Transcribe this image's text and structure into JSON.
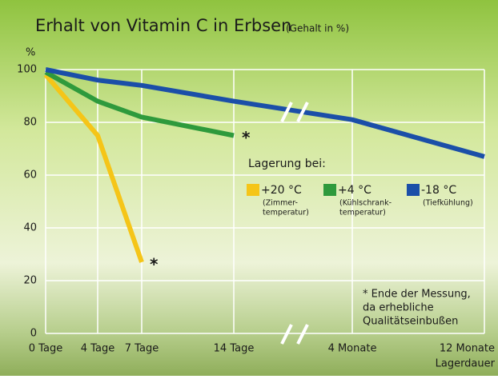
{
  "chart_data": {
    "type": "line",
    "title": "Erhalt von Vitamin C in Erbsen",
    "subtitle": "(Gehalt in %)",
    "y_label": "%",
    "x_label": "Lagerdauer",
    "categories": [
      "0 Tage",
      "4 Tage",
      "7 Tage",
      "14 Tage",
      "4 Monate",
      "12 Monate"
    ],
    "series": [
      {
        "name": "+20 °C",
        "note": [
          "(Zimmer-",
          "temperatur)"
        ],
        "color": "#f5c518",
        "values": [
          98,
          75,
          27,
          null,
          null,
          null
        ]
      },
      {
        "name": "+4 °C",
        "note": [
          "(Kühlschrank-",
          "temperatur)"
        ],
        "color": "#2e9a3c",
        "values": [
          99,
          88,
          82,
          75,
          null,
          null
        ]
      },
      {
        "name": "-18 °C",
        "note": [
          "(Tiefkühlung)"
        ],
        "color": "#1b4fa8",
        "values": [
          100,
          96,
          94,
          88,
          81,
          67
        ]
      }
    ],
    "legend_title": "Lagerung bei:",
    "end_marker": "*",
    "footnote": [
      "* Ende der Messung,",
      "da erhebliche",
      "Qualitätseinbußen"
    ],
    "ylim": [
      0,
      100
    ],
    "yticks": [
      0,
      20,
      40,
      60,
      80,
      100
    ],
    "grid": true
  }
}
